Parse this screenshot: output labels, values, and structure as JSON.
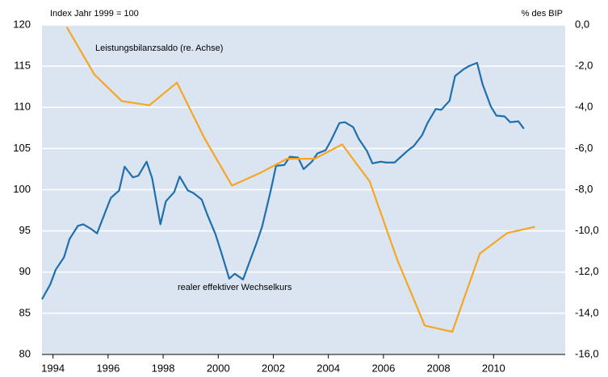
{
  "chart_data": {
    "type": "line",
    "left_axis_label": "Index Jahr 1999 = 100",
    "right_axis_label": "% des BIP",
    "background": "#dbe5f1",
    "grid": true,
    "xlim": [
      1993.6,
      2012.6
    ],
    "xticks": [
      1994,
      1996,
      1998,
      2000,
      2002,
      2004,
      2006,
      2008,
      2010
    ],
    "ylim": [
      80,
      120
    ],
    "yticks": [
      80,
      85,
      90,
      95,
      100,
      105,
      110,
      115,
      120
    ],
    "y2lim": [
      -16,
      0
    ],
    "y2ticks": [
      {
        "value": -16,
        "label": "-16,0"
      },
      {
        "value": -14,
        "label": "-14,0"
      },
      {
        "value": -12,
        "label": "-12,0"
      },
      {
        "value": -10,
        "label": "-10,0"
      },
      {
        "value": -8,
        "label": "-8,0"
      },
      {
        "value": -6,
        "label": "-6,0"
      },
      {
        "value": -4,
        "label": "-4,0"
      },
      {
        "value": -2,
        "label": "-2,0"
      },
      {
        "value": 0,
        "label": "0,0"
      }
    ],
    "series": [
      {
        "name": "realer effektiver Wechselkurs",
        "color": "#1f6fad",
        "x": [
          1993.6,
          1993.9,
          1994.1,
          1994.4,
          1994.6,
          1994.9,
          1995.1,
          1995.4,
          1995.6,
          1995.9,
          1996.1,
          1996.4,
          1996.6,
          1996.9,
          1997.1,
          1997.4,
          1997.6,
          1997.9,
          1998.1,
          1998.4,
          1998.6,
          1998.9,
          1999.1,
          1999.4,
          1999.6,
          1999.9,
          2000.1,
          2000.4,
          2000.6,
          2000.9,
          2001.1,
          2001.4,
          2001.6,
          2001.9,
          2002.1,
          2002.4,
          2002.6,
          2002.9,
          2003.1,
          2003.4,
          2003.6,
          2003.9,
          2004.1,
          2004.4,
          2004.6,
          2004.9,
          2005.1,
          2005.4,
          2005.6,
          2005.9,
          2006.1,
          2006.4,
          2006.6,
          2006.9,
          2007.1,
          2007.4,
          2007.6,
          2007.9,
          2008.1,
          2008.4,
          2008.6,
          2008.9,
          2009.1,
          2009.4,
          2009.6,
          2009.9,
          2010.1,
          2010.4,
          2010.6,
          2010.9,
          2011.1
        ],
        "values": [
          86.7,
          88.5,
          90.3,
          91.8,
          94.0,
          95.6,
          95.8,
          95.2,
          94.7,
          97.3,
          99.0,
          99.9,
          102.8,
          101.5,
          101.7,
          103.4,
          101.4,
          95.8,
          98.6,
          99.7,
          101.6,
          99.9,
          99.6,
          98.8,
          97.0,
          94.6,
          92.5,
          89.2,
          89.8,
          89.1,
          90.9,
          93.6,
          95.6,
          99.8,
          102.9,
          103.0,
          104.0,
          103.9,
          102.5,
          103.4,
          104.4,
          104.8,
          106.0,
          108.1,
          108.2,
          107.6,
          106.2,
          104.7,
          103.2,
          103.4,
          103.3,
          103.3,
          103.9,
          104.8,
          105.3,
          106.6,
          108.1,
          109.8,
          109.7,
          110.8,
          113.8,
          114.6,
          115.0,
          115.4,
          112.8,
          110.1,
          109.0,
          108.9,
          108.2,
          108.3,
          107.4
        ]
      },
      {
        "name": "Leistungsbilanzsaldo (re. Achse)",
        "color": "#f5a623",
        "axis": "y2",
        "x": [
          1994.5,
          1995.5,
          1996.5,
          1997.5,
          1998.5,
          1999.5,
          2000.5,
          2001.5,
          2002.5,
          2003.5,
          2004.5,
          2005.5,
          2006.5,
          2007.5,
          2008.5,
          2009.5,
          2010.5,
          2011.5
        ],
        "values": [
          -0.1,
          -2.4,
          -3.7,
          -3.9,
          -2.8,
          -5.5,
          -7.8,
          -7.2,
          -6.5,
          -6.5,
          -5.8,
          -7.6,
          -11.4,
          -14.6,
          -14.9,
          -11.1,
          -10.1,
          -9.8
        ]
      }
    ]
  }
}
